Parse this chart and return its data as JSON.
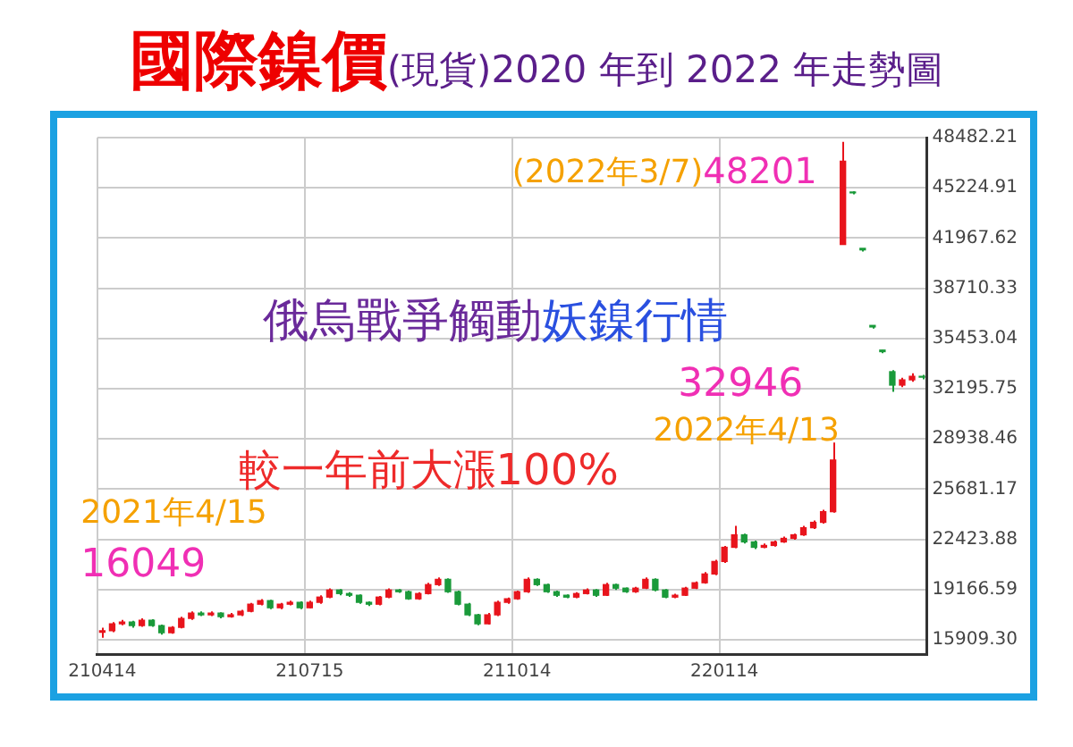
{
  "chart_data": {
    "type": "candlestick",
    "title": "國際鎳價",
    "subtitle": "(現貨)2020 年到 2022 年走勢圖",
    "categories": [
      "210414",
      null,
      null,
      null,
      null,
      null,
      null,
      null,
      null,
      null,
      null,
      null,
      null,
      null,
      null,
      null,
      null,
      null,
      null,
      null,
      null,
      "210715",
      null,
      null,
      null,
      null,
      null,
      null,
      null,
      null,
      null,
      null,
      null,
      null,
      null,
      null,
      null,
      null,
      null,
      null,
      null,
      null,
      "211014",
      null,
      null,
      null,
      null,
      null,
      null,
      null,
      null,
      null,
      null,
      null,
      null,
      null,
      null,
      null,
      null,
      null,
      null,
      null,
      null,
      "220114",
      null,
      null,
      null,
      null,
      null,
      null,
      null,
      null,
      null,
      null,
      null,
      null,
      null,
      null,
      null,
      null,
      null,
      null,
      null,
      null
    ],
    "ohlc": [
      [
        16400,
        16700,
        16049,
        16500
      ],
      [
        16500,
        17050,
        16400,
        16950
      ],
      [
        16950,
        17200,
        16850,
        17060
      ],
      [
        17060,
        17150,
        16700,
        16830
      ],
      [
        16830,
        17300,
        16750,
        17180
      ],
      [
        17180,
        17250,
        16750,
        16830
      ],
      [
        16830,
        16900,
        16250,
        16370
      ],
      [
        16370,
        16800,
        16300,
        16720
      ],
      [
        16720,
        17400,
        16650,
        17300
      ],
      [
        17300,
        17750,
        17200,
        17640
      ],
      [
        17640,
        17750,
        17450,
        17530
      ],
      [
        17530,
        17750,
        17450,
        17640
      ],
      [
        17640,
        17700,
        17300,
        17410
      ],
      [
        17410,
        17650,
        17350,
        17530
      ],
      [
        17530,
        17850,
        17450,
        17760
      ],
      [
        17760,
        18300,
        17700,
        18220
      ],
      [
        18220,
        18550,
        18150,
        18450
      ],
      [
        18450,
        18500,
        17900,
        17990
      ],
      [
        17990,
        18300,
        17900,
        18220
      ],
      [
        18220,
        18450,
        18150,
        18340
      ],
      [
        18340,
        18400,
        17900,
        17990
      ],
      [
        17990,
        18450,
        17950,
        18340
      ],
      [
        18340,
        18800,
        18250,
        18680
      ],
      [
        18680,
        19250,
        18600,
        19140
      ],
      [
        19140,
        19200,
        18800,
        18910
      ],
      [
        18910,
        19000,
        18700,
        18800
      ],
      [
        18800,
        18850,
        18250,
        18340
      ],
      [
        18340,
        18400,
        18100,
        18220
      ],
      [
        18220,
        18750,
        18150,
        18680
      ],
      [
        18680,
        19250,
        18600,
        19140
      ],
      [
        19140,
        19200,
        18950,
        19030
      ],
      [
        19030,
        19100,
        18500,
        18570
      ],
      [
        18570,
        19000,
        18500,
        18910
      ],
      [
        18910,
        19600,
        18850,
        19490
      ],
      [
        19490,
        19950,
        19400,
        19830
      ],
      [
        19830,
        19900,
        18950,
        19030
      ],
      [
        19030,
        19100,
        18150,
        18220
      ],
      [
        18220,
        18300,
        17450,
        17530
      ],
      [
        17530,
        17600,
        16850,
        16950
      ],
      [
        16950,
        17650,
        16900,
        17530
      ],
      [
        17530,
        18450,
        17450,
        18340
      ],
      [
        18340,
        18650,
        18250,
        18570
      ],
      [
        18570,
        19100,
        18500,
        19030
      ],
      [
        19030,
        19950,
        18950,
        19830
      ],
      [
        19830,
        19900,
        19400,
        19490
      ],
      [
        19490,
        19550,
        18950,
        19030
      ],
      [
        19030,
        19100,
        18700,
        18800
      ],
      [
        18800,
        18850,
        18600,
        18680
      ],
      [
        18680,
        19000,
        18600,
        18910
      ],
      [
        18910,
        19250,
        18850,
        19140
      ],
      [
        19140,
        19200,
        18700,
        18800
      ],
      [
        18800,
        19600,
        18750,
        19490
      ],
      [
        19490,
        19550,
        19150,
        19260
      ],
      [
        19260,
        19300,
        18950,
        19030
      ],
      [
        19030,
        19350,
        18950,
        19260
      ],
      [
        19260,
        19950,
        19200,
        19830
      ],
      [
        19830,
        19900,
        19050,
        19140
      ],
      [
        19140,
        19200,
        18600,
        18680
      ],
      [
        18680,
        18900,
        18600,
        18800
      ],
      [
        18800,
        19350,
        18750,
        19260
      ],
      [
        19260,
        19700,
        19200,
        19610
      ],
      [
        19610,
        20300,
        19550,
        20180
      ],
      [
        20180,
        21100,
        20100,
        20990
      ],
      [
        20990,
        22000,
        20900,
        21910
      ],
      [
        21910,
        23300,
        21850,
        22720
      ],
      [
        22720,
        22800,
        22150,
        22260
      ],
      [
        22260,
        22350,
        21800,
        21910
      ],
      [
        21910,
        22150,
        21850,
        22030
      ],
      [
        22030,
        22350,
        21950,
        22260
      ],
      [
        22260,
        22600,
        22200,
        22490
      ],
      [
        22490,
        22800,
        22400,
        22720
      ],
      [
        22720,
        23300,
        22650,
        23180
      ],
      [
        23180,
        23650,
        23100,
        23530
      ],
      [
        23530,
        24350,
        23450,
        24220
      ],
      [
        24220,
        28700,
        24150,
        27570
      ],
      [
        41550,
        48201,
        41550,
        46950
      ],
      [
        44950,
        45000,
        44800,
        44900
      ],
      [
        41300,
        41300,
        41100,
        41200
      ],
      [
        36300,
        36300,
        36100,
        36200
      ],
      [
        34700,
        34700,
        34500,
        34600
      ],
      [
        33300,
        33400,
        32000,
        32430
      ],
      [
        32430,
        32900,
        32300,
        32770
      ],
      [
        32770,
        33200,
        32650,
        33000
      ],
      [
        33000,
        33100,
        32800,
        32946
      ]
    ],
    "colors": [
      "#e8141c",
      "#e8141c",
      "#e8141c",
      "#1a9a3a",
      "#e8141c",
      "#1a9a3a",
      "#1a9a3a",
      "#e8141c",
      "#e8141c",
      "#e8141c",
      "#1a9a3a",
      "#e8141c",
      "#1a9a3a",
      "#e8141c",
      "#e8141c",
      "#e8141c",
      "#e8141c",
      "#1a9a3a",
      "#e8141c",
      "#e8141c",
      "#1a9a3a",
      "#e8141c",
      "#e8141c",
      "#e8141c",
      "#1a9a3a",
      "#1a9a3a",
      "#1a9a3a",
      "#1a9a3a",
      "#e8141c",
      "#e8141c",
      "#1a9a3a",
      "#1a9a3a",
      "#e8141c",
      "#e8141c",
      "#e8141c",
      "#1a9a3a",
      "#1a9a3a",
      "#1a9a3a",
      "#1a9a3a",
      "#e8141c",
      "#e8141c",
      "#e8141c",
      "#e8141c",
      "#e8141c",
      "#1a9a3a",
      "#1a9a3a",
      "#1a9a3a",
      "#1a9a3a",
      "#e8141c",
      "#e8141c",
      "#1a9a3a",
      "#e8141c",
      "#1a9a3a",
      "#1a9a3a",
      "#e8141c",
      "#e8141c",
      "#1a9a3a",
      "#1a9a3a",
      "#e8141c",
      "#e8141c",
      "#e8141c",
      "#e8141c",
      "#e8141c",
      "#e8141c",
      "#e8141c",
      "#1a9a3a",
      "#1a9a3a",
      "#e8141c",
      "#e8141c",
      "#e8141c",
      "#e8141c",
      "#e8141c",
      "#e8141c",
      "#e8141c",
      "#e8141c",
      "#e8141c",
      "#1a9a3a",
      "#1a9a3a",
      "#1a9a3a",
      "#1a9a3a",
      "#1a9a3a",
      "#e8141c",
      "#e8141c",
      "#1a9a3a"
    ],
    "ylim": [
      14985,
      48482.21
    ],
    "yticks": [
      48482.21,
      45224.91,
      41967.62,
      38710.33,
      35453.04,
      32195.75,
      28938.46,
      25681.17,
      22423.88,
      19166.59,
      {
        "value": 15909.3,
        "label": "15909.30"
      }
    ],
    "grid": true,
    "annotations": [
      "2021年4/15",
      "16049",
      "(2022年3/7)",
      "48201",
      "俄烏戰爭觸動",
      "妖鎳行情",
      "較一年前大漲100%",
      "2022年4/13",
      "32946"
    ]
  }
}
